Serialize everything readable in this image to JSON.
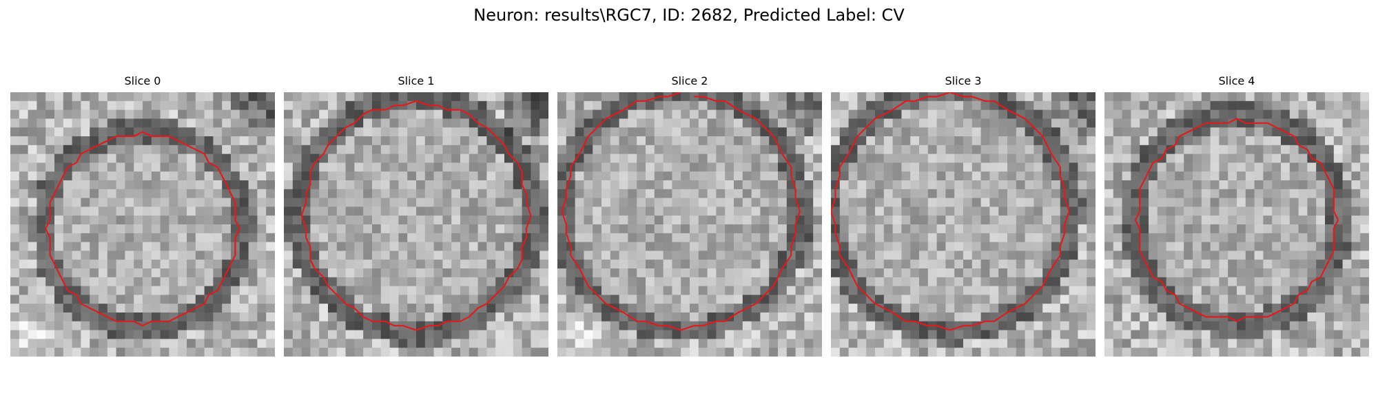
{
  "figure": {
    "title": "Neuron: results\\RGC7, ID: 2682, Predicted Label: CV"
  },
  "colors": {
    "contour": "#e31a1c",
    "background": "#ffffff"
  },
  "panels": [
    {
      "title": "Slice 0"
    },
    {
      "title": "Slice 1"
    },
    {
      "title": "Slice 2"
    },
    {
      "title": "Slice 3"
    },
    {
      "title": "Slice 4"
    }
  ]
}
